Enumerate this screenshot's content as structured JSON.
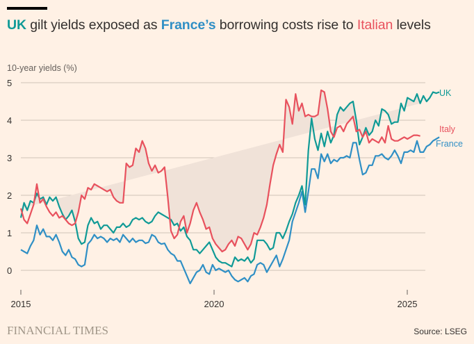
{
  "header": {
    "title_parts": {
      "uk": "UK",
      "t1": " gilt yields exposed as ",
      "france": "France’s",
      "t2": " borrowing costs rise to ",
      "italy": "Italian",
      "t3": " levels"
    }
  },
  "footer": {
    "brand": "FINANCIAL TIMES",
    "source": "Source: LSEG"
  },
  "chart_data": {
    "type": "line",
    "title": "UK gilt yields exposed as France’s borrowing costs rise to Italian levels",
    "ylabel": "10-year yields (%)",
    "xlabel": "",
    "ylim": [
      -0.5,
      5
    ],
    "xlim": [
      2015,
      2026
    ],
    "yticks": [
      0,
      1,
      2,
      3,
      4,
      5
    ],
    "xticks": [
      2015,
      2020,
      2025
    ],
    "grid": true,
    "colors": {
      "UK": "#0f9a96",
      "Italy": "#e8515d",
      "France": "#2f8fc5",
      "band": "#f0e2d8"
    },
    "x_start": 2015.0,
    "x_step": 0.0833,
    "series": [
      {
        "name": "UK",
        "values": [
          1.4,
          1.8,
          1.6,
          1.85,
          1.8,
          2.05,
          1.9,
          1.95,
          1.75,
          1.95,
          1.85,
          1.95,
          1.7,
          1.5,
          1.35,
          1.45,
          1.6,
          1.3,
          0.85,
          0.7,
          0.75,
          1.2,
          1.4,
          1.25,
          1.3,
          1.1,
          1.2,
          1.2,
          1.1,
          1.0,
          1.15,
          1.15,
          1.25,
          1.15,
          1.2,
          1.35,
          1.4,
          1.35,
          1.4,
          1.3,
          1.25,
          1.3,
          1.45,
          1.55,
          1.5,
          1.45,
          1.4,
          1.35,
          1.2,
          1.25,
          1.05,
          1.15,
          0.9,
          0.8,
          0.55,
          0.55,
          0.45,
          0.55,
          0.65,
          0.75,
          0.55,
          0.35,
          0.25,
          0.2,
          0.2,
          0.15,
          0.1,
          0.35,
          0.25,
          0.3,
          0.25,
          0.35,
          0.2,
          0.3,
          0.8,
          0.8,
          0.8,
          0.7,
          0.55,
          0.6,
          1.0,
          1.0,
          0.85,
          1.05,
          1.3,
          1.5,
          1.8,
          2.0,
          2.25,
          1.75,
          3.2,
          4.05,
          3.5,
          3.2,
          3.65,
          3.3,
          3.7,
          3.4,
          3.6,
          4.15,
          4.35,
          4.25,
          4.35,
          4.45,
          4.5,
          4.0,
          3.35,
          3.55,
          3.8,
          3.6,
          3.7,
          4.0,
          3.85,
          4.3,
          4.25,
          4.15,
          3.9,
          3.95,
          3.95,
          4.45,
          4.25,
          4.6,
          4.55,
          4.5,
          4.7,
          4.45,
          4.65,
          4.5,
          4.6,
          4.75,
          4.72,
          4.75
        ]
      },
      {
        "name": "Italy",
        "values": [
          1.65,
          1.35,
          1.25,
          1.5,
          1.75,
          2.3,
          1.8,
          1.9,
          1.7,
          1.55,
          1.45,
          1.55,
          1.4,
          1.45,
          1.35,
          1.25,
          1.2,
          1.25,
          1.55,
          2.0,
          1.9,
          2.2,
          2.15,
          2.3,
          2.25,
          2.2,
          2.15,
          2.1,
          2.15,
          1.95,
          1.85,
          1.8,
          1.8,
          2.85,
          2.75,
          2.8,
          3.25,
          3.15,
          3.45,
          3.25,
          2.85,
          2.65,
          2.8,
          2.6,
          2.65,
          2.75,
          1.95,
          1.05,
          0.85,
          0.95,
          1.3,
          1.45,
          1.0,
          1.25,
          1.6,
          1.8,
          1.55,
          1.35,
          1.1,
          1.15,
          0.85,
          0.7,
          0.6,
          0.5,
          0.55,
          0.7,
          0.8,
          0.65,
          0.9,
          0.85,
          0.7,
          0.55,
          0.7,
          1.0,
          0.95,
          1.15,
          1.4,
          1.75,
          2.3,
          2.8,
          3.1,
          3.35,
          3.15,
          4.55,
          4.35,
          3.9,
          4.7,
          4.25,
          4.45,
          4.1,
          4.15,
          4.1,
          4.1,
          4.15,
          4.8,
          4.75,
          4.3,
          3.7,
          3.55,
          3.8,
          3.85,
          3.7,
          3.9,
          4.0,
          4.1,
          3.7,
          3.75,
          3.55,
          3.7,
          3.4,
          3.5,
          3.45,
          3.4,
          3.55,
          3.4,
          3.85,
          3.5,
          3.45,
          3.45,
          3.5,
          3.55,
          3.5,
          3.55,
          3.6,
          3.6,
          3.58
        ]
      },
      {
        "name": "France",
        "values": [
          0.55,
          0.5,
          0.45,
          0.65,
          0.8,
          1.2,
          0.95,
          1.1,
          0.9,
          0.9,
          0.8,
          0.95,
          0.75,
          0.5,
          0.4,
          0.55,
          0.35,
          0.3,
          0.15,
          0.1,
          0.15,
          0.7,
          0.8,
          0.95,
          0.85,
          0.9,
          0.85,
          0.75,
          0.85,
          0.8,
          0.85,
          0.75,
          0.95,
          0.85,
          0.75,
          0.85,
          0.75,
          0.8,
          0.8,
          0.72,
          0.75,
          0.95,
          0.9,
          0.75,
          0.7,
          0.72,
          0.55,
          0.45,
          0.4,
          0.25,
          0.25,
          0.05,
          -0.15,
          -0.35,
          -0.2,
          -0.05,
          0.0,
          0.15,
          -0.05,
          -0.1,
          0.15,
          0.0,
          0.05,
          0.0,
          -0.05,
          0.0,
          -0.15,
          -0.25,
          -0.3,
          -0.25,
          -0.2,
          -0.3,
          -0.15,
          -0.1,
          0.15,
          0.2,
          0.15,
          -0.05,
          0.1,
          0.25,
          0.4,
          0.1,
          0.3,
          0.55,
          0.8,
          1.3,
          1.55,
          1.8,
          2.1,
          1.55,
          2.1,
          2.7,
          2.7,
          2.45,
          3.1,
          2.9,
          3.1,
          2.85,
          2.95,
          2.9,
          3.0,
          3.0,
          3.05,
          3.0,
          3.4,
          3.4,
          2.95,
          2.55,
          2.6,
          2.8,
          2.8,
          3.05,
          3.05,
          3.1,
          3.0,
          2.95,
          3.05,
          3.2,
          3.05,
          2.85,
          3.15,
          3.15,
          3.2,
          3.15,
          3.45,
          3.15,
          3.15,
          3.3,
          3.35,
          3.45,
          3.5,
          3.55
        ]
      }
    ],
    "direct_labels": [
      "UK",
      "Italy",
      "France"
    ]
  }
}
